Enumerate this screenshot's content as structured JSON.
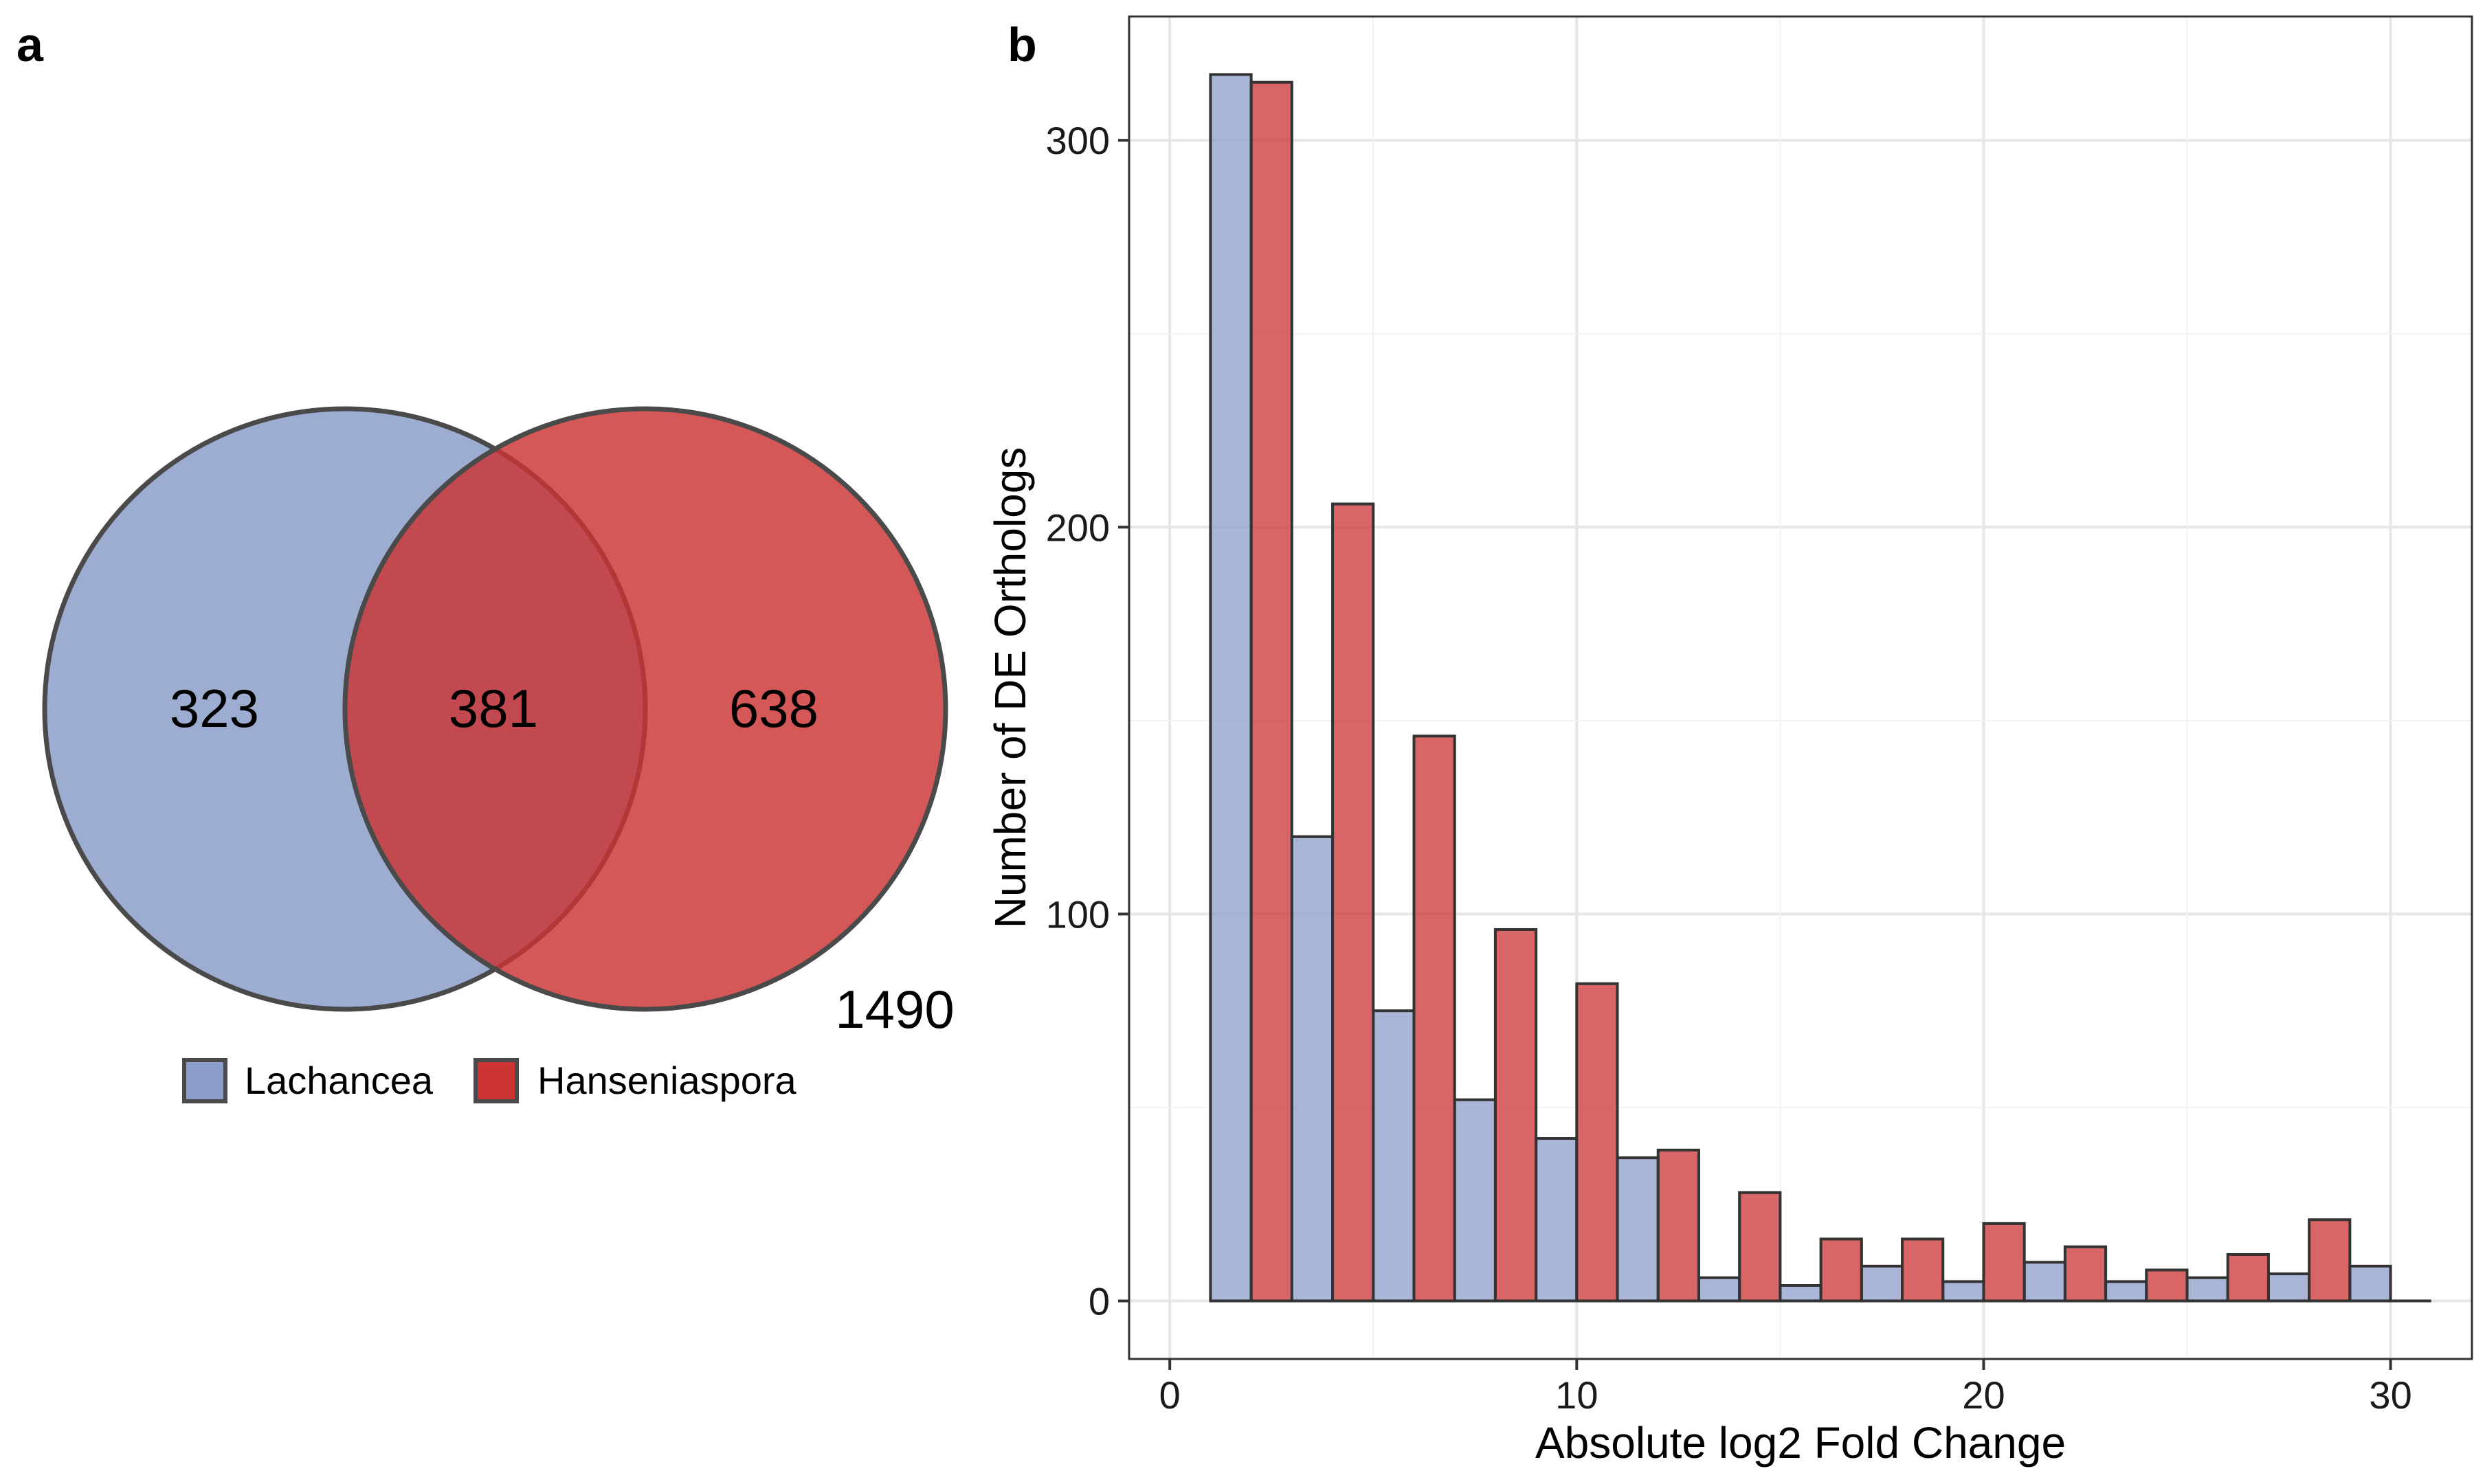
{
  "panels": {
    "a": "a",
    "b": "b"
  },
  "venn": {
    "sets": [
      {
        "name": "Lachancea",
        "color": "#8c9ec9"
      },
      {
        "name": "Hanseniaspora",
        "color": "#cc3333"
      }
    ],
    "regions": {
      "only_lachancea": "323",
      "intersection": "381",
      "only_hanseniaspora": "638"
    },
    "outside_total": "1490",
    "legend": [
      "Lachancea",
      "Hanseniaspora"
    ]
  },
  "chart_data": {
    "type": "bar",
    "xlabel": "Absolute log2 Fold Change",
    "ylabel": "Number of DE Orthologs",
    "xlim": [
      -1,
      32
    ],
    "ylim": [
      -15,
      332
    ],
    "x_ticks": [
      0,
      10,
      20,
      30
    ],
    "y_ticks": [
      0,
      100,
      200,
      300
    ],
    "grid": true,
    "bin_width": 1,
    "series": [
      {
        "color": "#8c9ec9",
        "x": [
          1.5,
          3.5,
          5.5,
          7.5,
          9.5,
          11.5,
          13.5,
          15.5,
          17.5,
          19.5,
          21.5,
          23.5,
          25.5,
          27.5,
          29.5
        ],
        "values": [
          317,
          120,
          75,
          52,
          42,
          37,
          6,
          4,
          9,
          5,
          10,
          5,
          6,
          7,
          9
        ]
      },
      {
        "color": "#cc3333",
        "x": [
          2.5,
          4.5,
          6.5,
          8.5,
          10.5,
          12.5,
          14.5,
          16.5,
          18.5,
          20.5,
          22.5,
          24.5,
          26.5,
          28.5,
          30.5
        ],
        "values": [
          315,
          206,
          146,
          96,
          82,
          39,
          28,
          16,
          16,
          20,
          14,
          8,
          12,
          21,
          0
        ]
      }
    ]
  }
}
